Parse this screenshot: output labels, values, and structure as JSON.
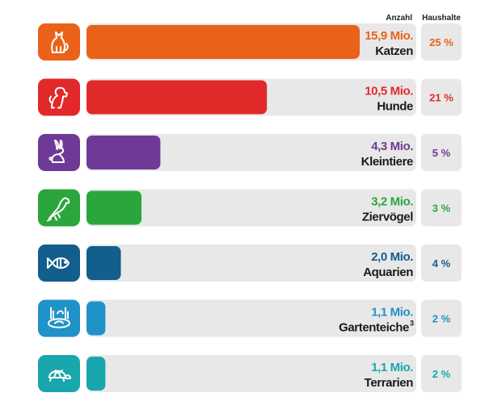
{
  "chart_data": {
    "type": "bar",
    "orientation": "horizontal",
    "headers": {
      "count": "Anzahl",
      "households": "Haushalte"
    },
    "x_max": 15.9,
    "rows": [
      {
        "icon": "cat-icon",
        "label": "Katzen",
        "sup": "",
        "value": 15.9,
        "value_text": "15,9 Mio.",
        "households": "25 %",
        "color": "#ea6219"
      },
      {
        "icon": "dog-icon",
        "label": "Hunde",
        "sup": "",
        "value": 10.5,
        "value_text": "10,5 Mio.",
        "households": "21 %",
        "color": "#e2292a"
      },
      {
        "icon": "rabbit-icon",
        "label": "Kleintiere",
        "sup": "",
        "value": 4.3,
        "value_text": "4,3 Mio.",
        "households": "5 %",
        "color": "#6f3a97"
      },
      {
        "icon": "parrot-icon",
        "label": "Ziervögel",
        "sup": "",
        "value": 3.2,
        "value_text": "3,2 Mio.",
        "households": "3 %",
        "color": "#2aa63c"
      },
      {
        "icon": "fish-icon",
        "label": "Aquarien",
        "sup": "",
        "value": 2.0,
        "value_text": "2,0 Mio.",
        "households": "4 %",
        "color": "#125e8c"
      },
      {
        "icon": "pond-icon",
        "label": "Gartenteiche",
        "sup": "3",
        "value": 1.1,
        "value_text": "1,1 Mio.",
        "households": "2 %",
        "color": "#1f92c8"
      },
      {
        "icon": "turtle-icon",
        "label": "Terrarien",
        "sup": "",
        "value": 1.1,
        "value_text": "1,1 Mio.",
        "households": "2 %",
        "color": "#19a6ad"
      }
    ]
  }
}
